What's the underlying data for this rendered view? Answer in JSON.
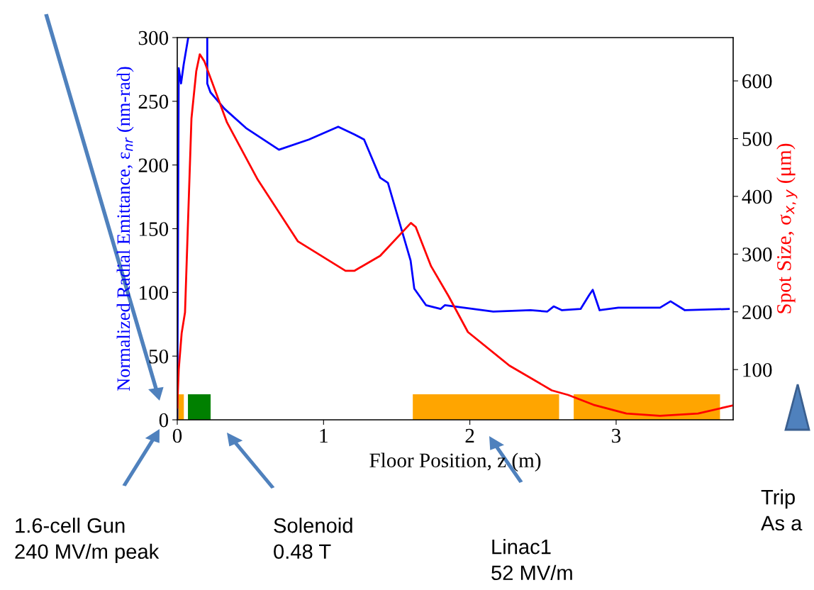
{
  "chart_data": {
    "type": "line",
    "xlabel": "Floor Position, z (m)",
    "ylabel": "Normalized Radial Emittance, ε$_{nr}$ (nm-rad)",
    "y2label": "Spot Size, σ$_{x,y}$ (μm)",
    "xlim": [
      0,
      3.8
    ],
    "xticks": [
      0,
      1,
      2,
      3
    ],
    "ylim": [
      0,
      300
    ],
    "yticks": [
      0,
      50,
      100,
      150,
      200,
      250,
      300
    ],
    "y2lim": [
      13,
      675
    ],
    "y2ticks": [
      100,
      200,
      300,
      400,
      500,
      600
    ],
    "series": [
      {
        "color": "#0000ff",
        "x": [
          0.0,
          0.01,
          0.026,
          0.044,
          0.075,
          0.087,
          0.205,
          0.205,
          0.227,
          0.324,
          0.47,
          0.695,
          0.9,
          1.1,
          1.21,
          1.277,
          1.387,
          1.44,
          1.595,
          1.62,
          1.7,
          1.8,
          1.83,
          2.16,
          2.415,
          2.53,
          2.573,
          2.63,
          2.757,
          2.816,
          2.84,
          2.887,
          3.015,
          3.3,
          3.372,
          3.47,
          3.77
        ],
        "values": [
          0,
          276,
          264,
          279,
          300,
          null,
          300,
          264,
          257,
          244,
          229,
          212,
          220,
          230,
          224,
          220,
          190,
          186,
          125,
          103,
          90,
          87,
          90,
          85,
          86,
          85,
          89,
          86,
          87,
          98,
          102,
          86,
          88,
          88,
          93,
          86,
          87
        ]
      },
      {
        "color": "#ff0000",
        "axis": "y2",
        "x": [
          0.0,
          0.01,
          0.03,
          0.053,
          0.097,
          0.13,
          0.154,
          0.185,
          0.34,
          0.55,
          0.825,
          1.15,
          1.21,
          1.387,
          1.597,
          1.63,
          1.735,
          1.855,
          1.987,
          2.27,
          2.56,
          2.673,
          2.845,
          3.07,
          3.3,
          3.56,
          3.8
        ],
        "values": [
          34,
          100,
          163,
          199,
          535,
          617,
          646,
          634,
          528,
          429,
          322,
          271,
          271,
          297,
          354,
          347,
          279,
          227,
          165,
          107,
          64,
          56,
          39,
          24,
          20,
          24,
          38
        ]
      }
    ],
    "bands": [
      {
        "axis": "x",
        "from": 0.0,
        "to": 0.045,
        "color": "#ffa500"
      },
      {
        "axis": "x",
        "from": 0.073,
        "to": 0.228,
        "color": "#008000"
      },
      {
        "axis": "x",
        "from": 1.61,
        "to": 2.61,
        "color": "#ffa500"
      },
      {
        "axis": "x",
        "from": 2.71,
        "to": 3.71,
        "color": "#ffa500"
      }
    ],
    "annotations": [
      "1.6-cell Gun\n240 MV/m peak",
      "Solenoid\n0.48 T",
      "Linac1\n52 MV/m",
      "Trip\nAs a"
    ]
  }
}
